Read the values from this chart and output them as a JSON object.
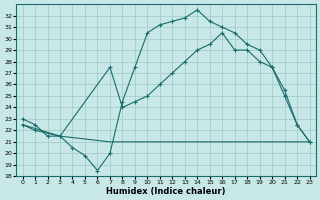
{
  "xlabel": "Humidex (Indice chaleur)",
  "bg_color": "#c8e8e8",
  "grid_color": "#a0c8c8",
  "line_color": "#1a6b6b",
  "xlim": [
    -0.5,
    23.5
  ],
  "ylim": [
    18,
    33
  ],
  "xticks": [
    0,
    1,
    2,
    3,
    4,
    5,
    6,
    7,
    8,
    9,
    10,
    11,
    12,
    13,
    14,
    15,
    16,
    17,
    18,
    19,
    20,
    21,
    22,
    23
  ],
  "yticks": [
    18,
    19,
    20,
    21,
    22,
    23,
    24,
    25,
    26,
    27,
    28,
    29,
    30,
    31,
    32
  ],
  "line1_x": [
    0,
    1,
    2,
    3,
    4,
    5,
    6,
    7,
    8,
    9,
    10,
    11,
    12,
    13,
    14,
    15,
    16,
    17,
    18,
    19,
    20,
    21,
    22,
    23
  ],
  "line1_y": [
    23,
    22.5,
    21.5,
    21.5,
    20.5,
    19.8,
    18.5,
    20.0,
    24.5,
    27.5,
    30.5,
    31.2,
    31.5,
    31.8,
    32.5,
    31.5,
    31.0,
    30.5,
    29.5,
    29.0,
    27.5,
    25.5,
    22.5,
    21.0
  ],
  "line2_x": [
    0,
    1,
    3,
    7,
    8,
    9,
    10,
    11,
    12,
    13,
    14,
    15,
    16,
    17,
    18,
    19,
    20,
    21,
    22,
    23
  ],
  "line2_y": [
    22.5,
    22.0,
    21.5,
    27.5,
    24.0,
    24.5,
    25.0,
    26.0,
    27.0,
    28.0,
    29.0,
    29.5,
    30.5,
    29.0,
    29.0,
    28.0,
    27.5,
    25.0,
    22.5,
    21.0
  ],
  "line3_x": [
    0,
    3,
    7,
    8,
    9,
    10,
    11,
    12,
    13,
    14,
    15,
    16,
    17,
    18,
    19,
    20,
    21,
    22,
    23
  ],
  "line3_y": [
    22.5,
    21.5,
    21.0,
    21.0,
    21.0,
    21.0,
    21.0,
    21.0,
    21.0,
    21.0,
    21.0,
    21.0,
    21.0,
    21.0,
    21.0,
    21.0,
    21.0,
    21.0,
    21.0
  ]
}
